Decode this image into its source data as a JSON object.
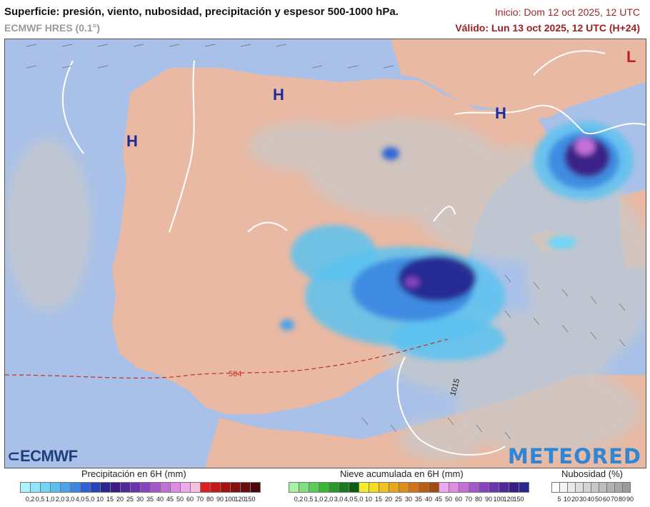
{
  "header": {
    "title": "Superficie: presión, viento, nubosidad, precipitación y espesor 500-1000 hPa.",
    "model": "ECMWF HRES (0.1°)",
    "init": "Inicio: Dom 12 oct 2025, 12 UTC",
    "valid": "Válido: Lun 13 oct 2025, 12 UTC (H+24)"
  },
  "map": {
    "pressure_labels": {
      "high": "H",
      "low": "L"
    },
    "thickness_labels": [
      "564"
    ],
    "isobar_label": "1015",
    "colors": {
      "sea": "#a9c1e8",
      "land": "#eab9a3",
      "cloud": "#c9c9c9",
      "high": "#1b2a9e",
      "low": "#c0201d",
      "thickness": "#c0392b",
      "isobar": "#ffffff"
    }
  },
  "legends": {
    "precip": {
      "title": "Precipitación en 6H (mm)",
      "ticks": [
        "0,2",
        "0,5",
        "1,0",
        "2,0",
        "3,0",
        "4,0",
        "5,0",
        "10",
        "15",
        "20",
        "25",
        "30",
        "35",
        "40",
        "45",
        "50",
        "60",
        "70",
        "80",
        "90",
        "100",
        "120",
        "150"
      ],
      "colors": [
        "#aaf5ff",
        "#8ee6fa",
        "#72d4f6",
        "#58bff0",
        "#4aa3ea",
        "#3c86e2",
        "#2e63d6",
        "#2844b8",
        "#27278f",
        "#3a1d84",
        "#4f2b9a",
        "#6a35ae",
        "#8744c0",
        "#a458cc",
        "#c36fd8",
        "#de8be4",
        "#f0a8ee",
        "#f7c0e0",
        "#e01f1f",
        "#c51818",
        "#a41212",
        "#861111",
        "#6b0d0d",
        "#4a0a0a"
      ]
    },
    "snow": {
      "title": "Nieve acumulada en 6H (mm)",
      "ticks": [
        "0,2",
        "0,5",
        "1,0",
        "2,0",
        "3,0",
        "4,0",
        "5,0",
        "10",
        "15",
        "20",
        "25",
        "30",
        "35",
        "40",
        "45",
        "50",
        "60",
        "70",
        "80",
        "90",
        "100",
        "120",
        "150"
      ],
      "colors": [
        "#a7f0a4",
        "#80e07d",
        "#5bcc57",
        "#3ab536",
        "#26992a",
        "#1a7a1f",
        "#0f5a14",
        "#f2ef2a",
        "#f4dc1f",
        "#f0c41c",
        "#eaa61a",
        "#e08c18",
        "#d07415",
        "#bb5c12",
        "#a34a10",
        "#f0a8ee",
        "#de8be4",
        "#c36fd8",
        "#a458cc",
        "#8744c0",
        "#6a35ae",
        "#4f2b9a",
        "#3a1d84",
        "#27278f"
      ]
    },
    "cloud": {
      "title": "Nubosidad (%)",
      "ticks": [
        "5",
        "10",
        "20",
        "30",
        "40",
        "50",
        "60",
        "70",
        "80",
        "90"
      ],
      "colors": [
        "#ffffff",
        "#f4f4f4",
        "#e9e9e9",
        "#dedede",
        "#d3d3d3",
        "#c8c8c8",
        "#bdbdbd",
        "#b2b2b2",
        "#a7a7a7",
        "#9c9c9c"
      ]
    }
  },
  "logos": {
    "left": "ECMWF",
    "right": "METEORED"
  }
}
